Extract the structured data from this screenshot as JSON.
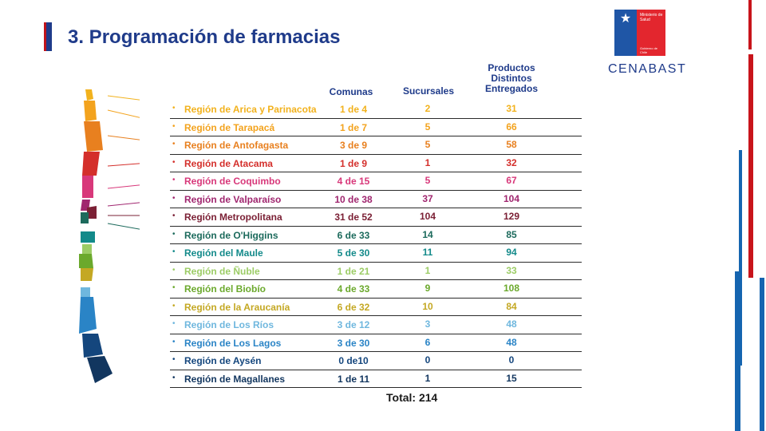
{
  "slide": {
    "title": "3. Programación de farmacias"
  },
  "logo": {
    "ministry_text": "Ministerio de Salud",
    "government_text": "Gobierno de Chile",
    "name": "CENABAST",
    "colors": {
      "blue": "#1f56a6",
      "red": "#e3262e"
    }
  },
  "table": {
    "headers": {
      "comunas": "Comunas",
      "sucursales": "Sucursales",
      "productos": "Productos Distintos Entregados"
    },
    "rows": [
      {
        "region": "Región de Arica y Parinacota",
        "comunas": "1 de 4",
        "sucursales": "2",
        "productos": "31",
        "color": "#f2b21d"
      },
      {
        "region": "Región de Tarapacá",
        "comunas": "1 de 7",
        "sucursales": "5",
        "productos": "66",
        "color": "#f3a31e"
      },
      {
        "region": "Región de Antofagasta",
        "comunas": "3 de 9",
        "sucursales": "5",
        "productos": "58",
        "color": "#e8801f"
      },
      {
        "region": "Región de Atacama",
        "comunas": "1 de 9",
        "sucursales": "1",
        "productos": "32",
        "color": "#d42f2b"
      },
      {
        "region": "Región de Coquimbo",
        "comunas": "4 de 15",
        "sucursales": "5",
        "productos": "67",
        "color": "#d8387a"
      },
      {
        "region": "Región de Valparaíso",
        "comunas": "10 de 38",
        "sucursales": "37",
        "productos": "104",
        "color": "#a0266f"
      },
      {
        "region": "Región Metropolitana",
        "comunas": "31 de 52",
        "sucursales": "104",
        "productos": "129",
        "color": "#7b2035"
      },
      {
        "region": "Región de O'Higgins",
        "comunas": "6 de 33",
        "sucursales": "14",
        "productos": "85",
        "color": "#1c6a5c"
      },
      {
        "region": "Región del Maule",
        "comunas": "5 de 30",
        "sucursales": "11",
        "productos": "94",
        "color": "#138a8a"
      },
      {
        "region": "Región de Ñuble",
        "comunas": "1 de 21",
        "sucursales": "1",
        "productos": "33",
        "color": "#9ccc65"
      },
      {
        "region": "Región del Biobío",
        "comunas": "4 de 33",
        "sucursales": "9",
        "productos": "108",
        "color": "#6ba92c"
      },
      {
        "region": "Región de la Araucanía",
        "comunas": "6 de 32",
        "sucursales": "10",
        "productos": "84",
        "color": "#c4a823"
      },
      {
        "region": "Región de Los Ríos",
        "comunas": "3 de 12",
        "sucursales": "3",
        "productos": "48",
        "color": "#6fb7de"
      },
      {
        "region": "Región de Los Lagos",
        "comunas": "3 de 30",
        "sucursales": "6",
        "productos": "48",
        "color": "#2a84c6"
      },
      {
        "region": "Región de Aysén",
        "comunas": "0 de10",
        "sucursales": "0",
        "productos": "0",
        "color": "#14467d"
      },
      {
        "region": "Región de Magallanes",
        "comunas": "1 de 11",
        "sucursales": "1",
        "productos": "15",
        "color": "#12365f"
      }
    ],
    "total": "Total: 214"
  },
  "decor_colors": {
    "red": "#c8141b",
    "blue": "#1565b0"
  }
}
